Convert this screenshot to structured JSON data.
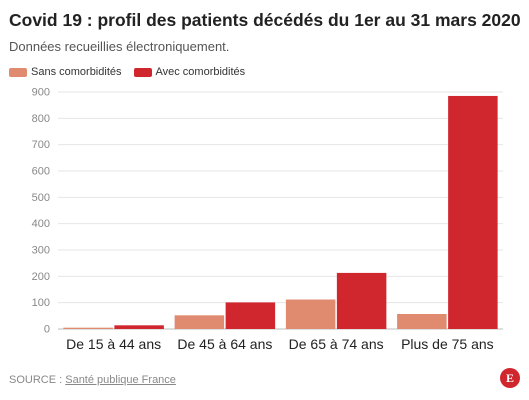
{
  "header": {
    "title": "Covid 19 : profil des patients décédés du 1er au 31 mars 2020",
    "subtitle": "Données recueillies électroniquement."
  },
  "legend": {
    "items": [
      {
        "label": "Sans comorbidités",
        "color": "#e08a70"
      },
      {
        "label": "Avec comorbidités",
        "color": "#d0272e"
      }
    ]
  },
  "chart_data": {
    "type": "bar",
    "title": "Covid 19 : profil des patients décédés du 1er au 31 mars 2020",
    "subtitle": "Données recueillies électroniquement.",
    "categories": [
      "De 15 à 44 ans",
      "De 45 à 64 ans",
      "De 65 à 74 ans",
      "Plus de 75 ans"
    ],
    "series": [
      {
        "name": "Sans comorbidités",
        "color": "#e08a70",
        "values": [
          5,
          52,
          112,
          57
        ]
      },
      {
        "name": "Avec comorbidités",
        "color": "#d0272e",
        "values": [
          14,
          101,
          213,
          885
        ]
      }
    ],
    "ylim": [
      0,
      900
    ],
    "yticks": [
      0,
      100,
      200,
      300,
      400,
      500,
      600,
      700,
      800,
      900
    ],
    "grid": true,
    "legend_position": "top-left"
  },
  "footer": {
    "source_prefix": "SOURCE : ",
    "source_name": "Santé publique France",
    "logo_letter": "E",
    "logo_color": "#d0272e"
  }
}
